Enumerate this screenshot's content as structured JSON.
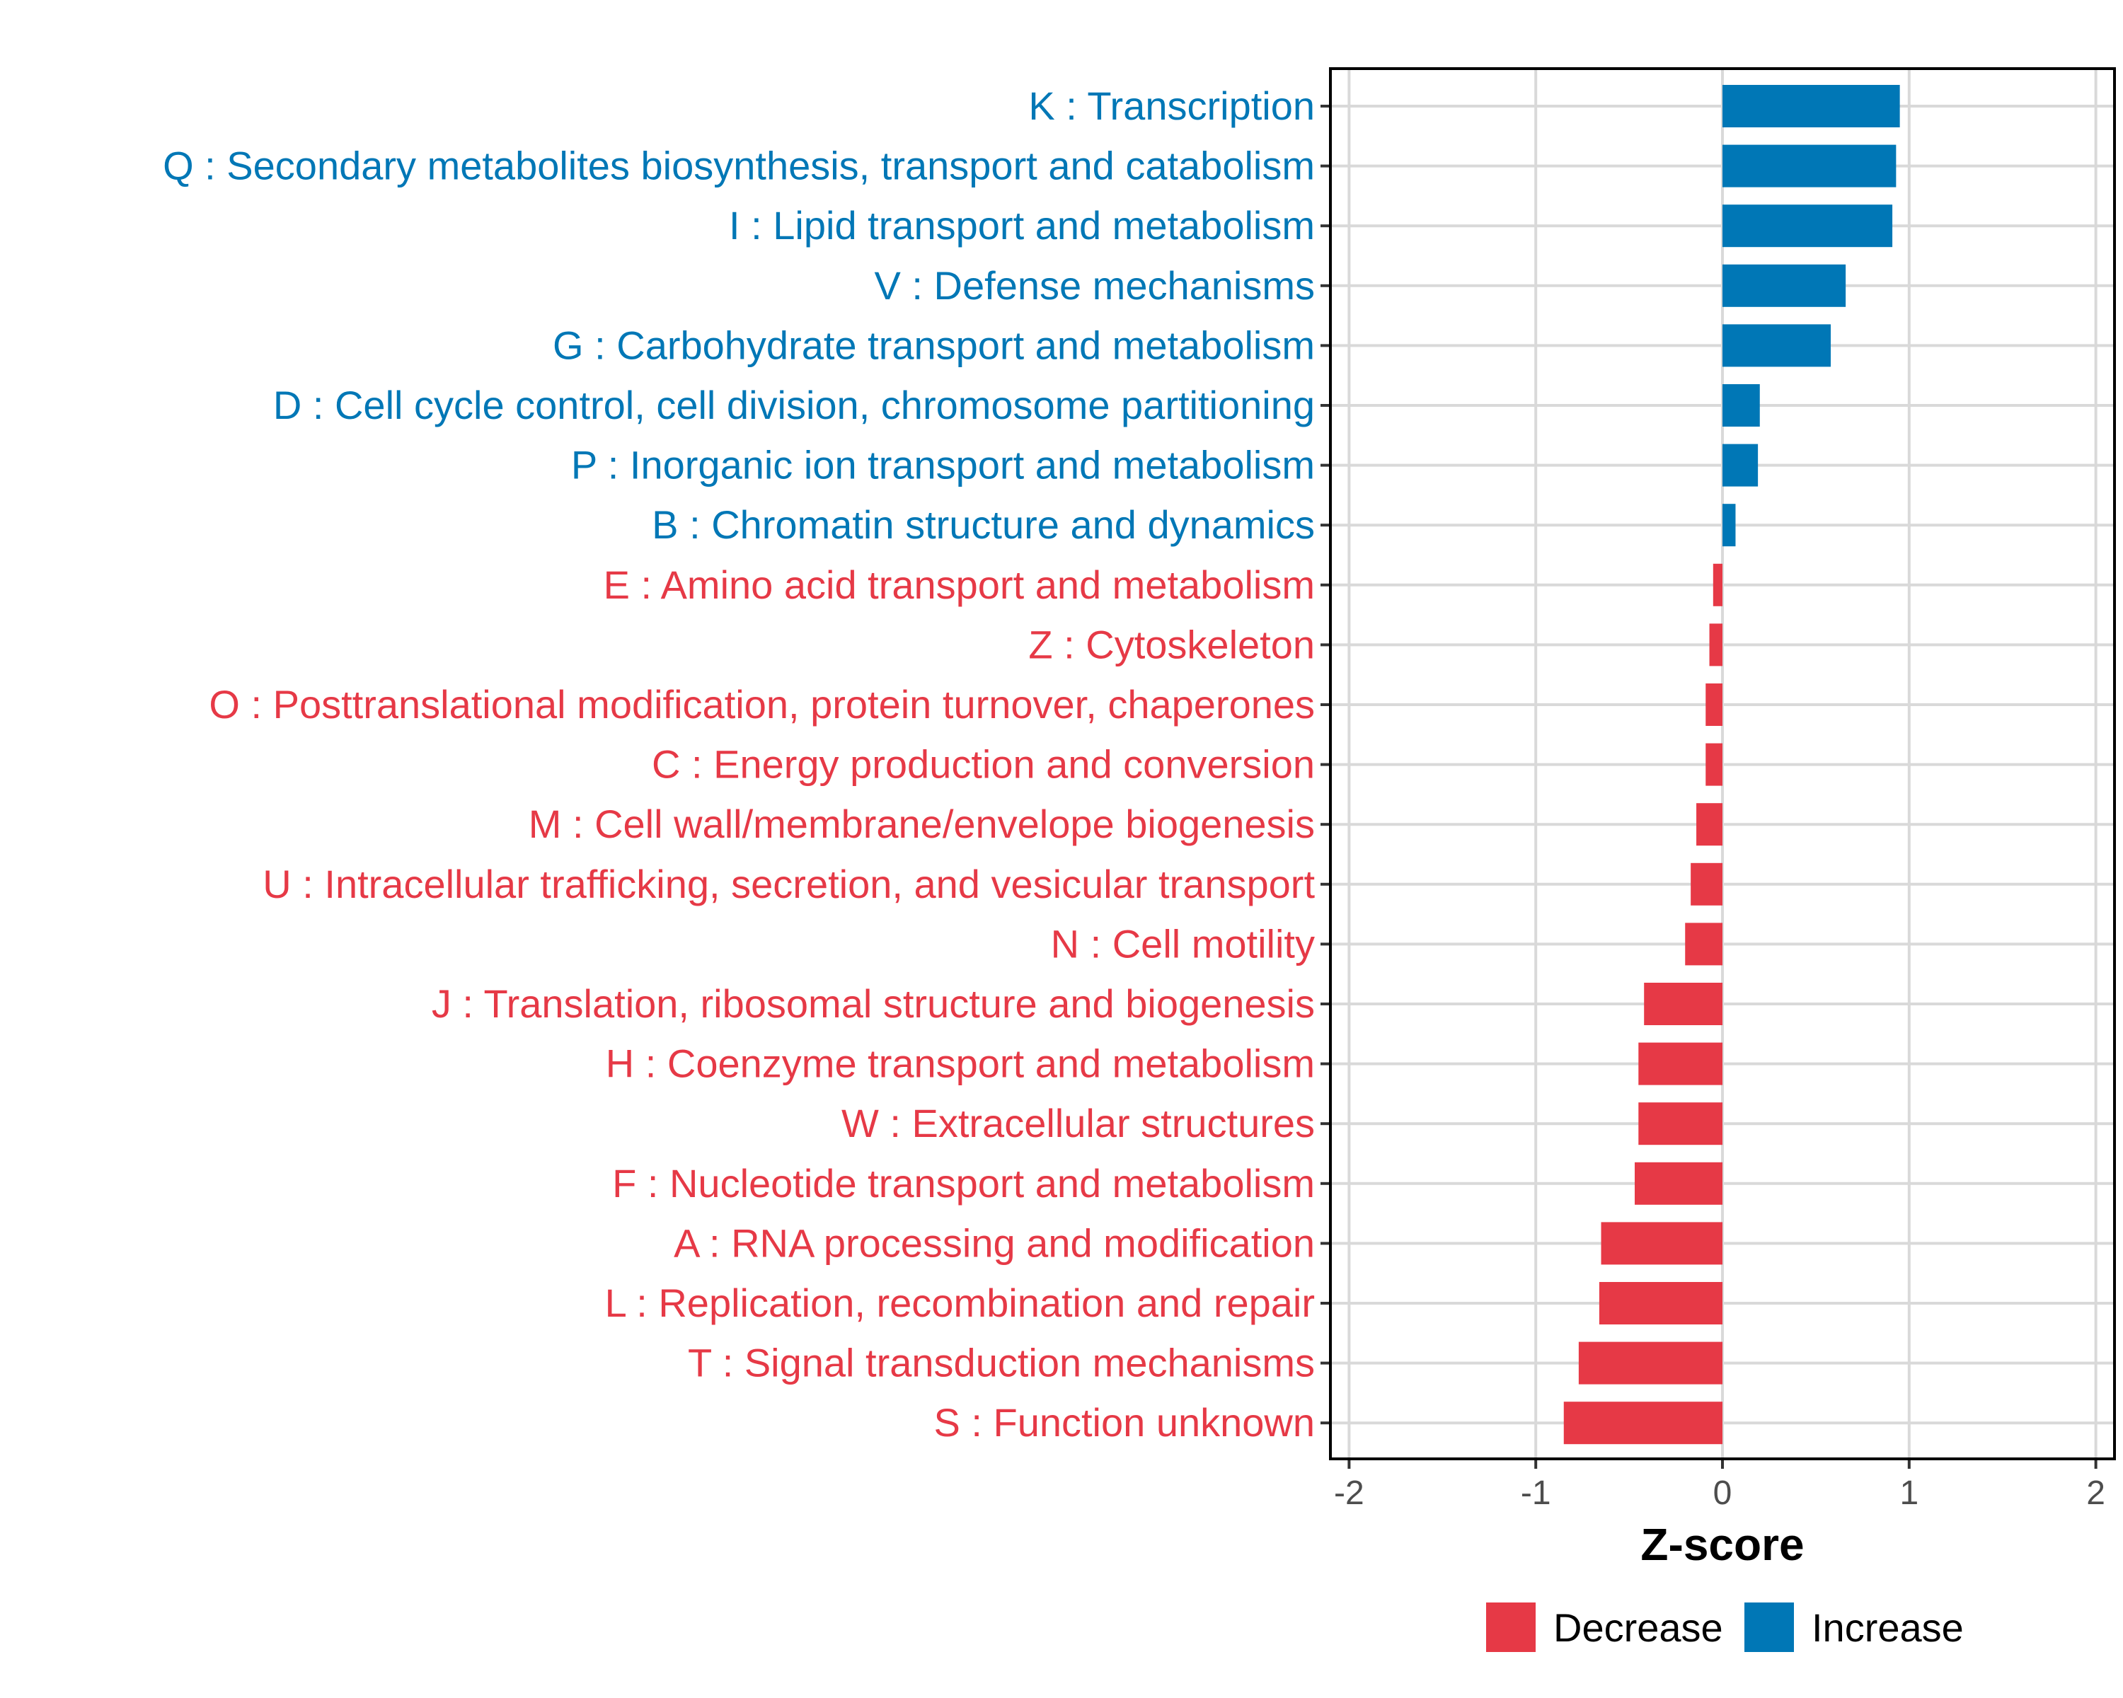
{
  "chart_data": {
    "type": "bar",
    "orientation": "horizontal",
    "title": "",
    "xlabel": "Z-score",
    "ylabel": "",
    "xlim": [
      -2.1,
      2.1
    ],
    "x_ticks": [
      -2,
      -1,
      0,
      1,
      2
    ],
    "x_tick_labels": [
      "-2",
      "-1",
      "0",
      "1",
      "2"
    ],
    "grid": true,
    "legend_position": "bottom",
    "colors": {
      "Decrease": "#e63946",
      "Increase": "#0077b6"
    },
    "legend": [
      {
        "label": "Decrease",
        "color": "#e63946"
      },
      {
        "label": "Increase",
        "color": "#0077b6"
      }
    ],
    "categories": [
      "K : Transcription",
      "Q : Secondary metabolites biosynthesis, transport and catabolism",
      "I : Lipid transport and metabolism",
      "V : Defense mechanisms",
      "G : Carbohydrate transport and metabolism",
      "D : Cell cycle control, cell division, chromosome partitioning",
      "P : Inorganic ion transport and metabolism",
      "B : Chromatin structure and dynamics",
      "E : Amino acid transport and metabolism",
      "Z : Cytoskeleton",
      "O : Posttranslational modification, protein turnover, chaperones",
      "C : Energy production and conversion",
      "M : Cell wall/membrane/envelope biogenesis",
      "U : Intracellular trafficking, secretion, and vesicular transport",
      "N : Cell motility",
      "J : Translation, ribosomal structure and biogenesis",
      "H : Coenzyme transport and metabolism",
      "W : Extracellular structures",
      "F : Nucleotide transport and metabolism",
      "A : RNA processing and modification",
      "L : Replication, recombination and repair",
      "T : Signal transduction mechanisms",
      "S : Function unknown"
    ],
    "values": [
      0.95,
      0.93,
      0.91,
      0.66,
      0.58,
      0.2,
      0.19,
      0.07,
      -0.05,
      -0.07,
      -0.09,
      -0.09,
      -0.14,
      -0.17,
      -0.2,
      -0.42,
      -0.45,
      -0.45,
      -0.47,
      -0.65,
      -0.66,
      -0.77,
      -0.85
    ],
    "groups": [
      "Increase",
      "Increase",
      "Increase",
      "Increase",
      "Increase",
      "Increase",
      "Increase",
      "Increase",
      "Decrease",
      "Decrease",
      "Decrease",
      "Decrease",
      "Decrease",
      "Decrease",
      "Decrease",
      "Decrease",
      "Decrease",
      "Decrease",
      "Decrease",
      "Decrease",
      "Decrease",
      "Decrease",
      "Decrease"
    ]
  }
}
